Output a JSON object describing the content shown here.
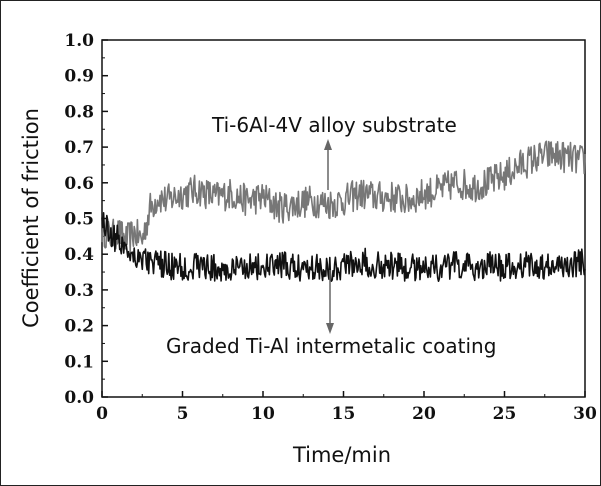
{
  "chart_data": {
    "type": "line",
    "xlabel": "Time/min",
    "ylabel": "Coefficient of friction",
    "xlim": [
      0,
      30
    ],
    "ylim": [
      0.0,
      1.0
    ],
    "x_ticks": [
      "0",
      "5",
      "10",
      "15",
      "20",
      "25",
      "30"
    ],
    "y_ticks": [
      "0.0",
      "0.1",
      "0.2",
      "0.3",
      "0.4",
      "0.5",
      "0.6",
      "0.7",
      "0.8",
      "0.9",
      "1.0"
    ],
    "grid": false,
    "annotations": [
      {
        "text": "Ti-6Al-4V alloy substrate",
        "series": "substrate"
      },
      {
        "text": "Graded Ti-Al intermetalic coating",
        "series": "coating"
      }
    ],
    "series": [
      {
        "key": "substrate",
        "color": "#777777",
        "x": [
          0,
          0.5,
          1,
          1.5,
          2,
          2.5,
          3,
          3.5,
          4,
          5,
          6,
          7,
          8,
          9,
          10,
          11,
          12,
          13,
          14,
          15,
          16,
          17,
          18,
          19,
          20,
          21,
          22,
          23,
          24,
          25,
          26,
          27,
          28,
          29,
          30
        ],
        "values": [
          0.47,
          0.45,
          0.46,
          0.44,
          0.46,
          0.44,
          0.53,
          0.56,
          0.55,
          0.57,
          0.58,
          0.56,
          0.57,
          0.55,
          0.56,
          0.53,
          0.54,
          0.55,
          0.54,
          0.55,
          0.57,
          0.56,
          0.56,
          0.55,
          0.57,
          0.58,
          0.6,
          0.59,
          0.6,
          0.62,
          0.65,
          0.67,
          0.68,
          0.67,
          0.66
        ]
      },
      {
        "key": "coating",
        "color": "#111111",
        "x": [
          0,
          0.5,
          1,
          1.5,
          2,
          2.5,
          3,
          3.5,
          4,
          5,
          6,
          7,
          8,
          9,
          10,
          11,
          12,
          13,
          14,
          15,
          16,
          17,
          18,
          19,
          20,
          21,
          22,
          23,
          24,
          25,
          26,
          27,
          28,
          29,
          30
        ],
        "values": [
          0.5,
          0.46,
          0.44,
          0.42,
          0.4,
          0.39,
          0.38,
          0.37,
          0.37,
          0.36,
          0.37,
          0.36,
          0.35,
          0.37,
          0.36,
          0.37,
          0.36,
          0.37,
          0.36,
          0.37,
          0.38,
          0.37,
          0.37,
          0.36,
          0.37,
          0.36,
          0.37,
          0.36,
          0.37,
          0.36,
          0.37,
          0.37,
          0.36,
          0.37,
          0.38
        ]
      }
    ]
  }
}
